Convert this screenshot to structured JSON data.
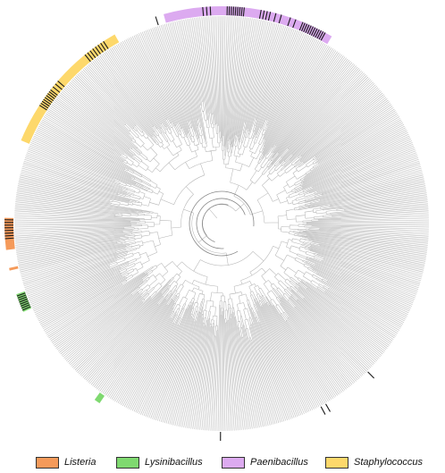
{
  "figure": {
    "type": "circular-phylogenetic-tree",
    "branch_color": "#b5b5b5",
    "marker_color": "#1a1a1a",
    "genus_bands": [
      {
        "genus": "Staphylococcus",
        "color": "#fdd86b",
        "start_deg": 292.5,
        "end_deg": 330.5
      },
      {
        "genus": "Paenibacillus",
        "color": "#dcaaf0",
        "start_deg": 344.5,
        "end_deg": 30.5
      },
      {
        "genus": "Listeria",
        "color": "#f59a5a",
        "start_deg": 263,
        "end_deg": 271.5
      },
      {
        "genus": "Listeria",
        "color": "#f59a5a",
        "start_deg": 257.5,
        "end_deg": 258.2
      },
      {
        "genus": "Lysinibacillus",
        "color": "#7fd970",
        "start_deg": 246,
        "end_deg": 251
      },
      {
        "genus": "Lysinibacillus",
        "color": "#7fd970",
        "start_deg": 214.2,
        "end_deg": 215.8
      }
    ],
    "marked_sectors": [
      {
        "start_deg": 303,
        "end_deg": 308,
        "count": 9
      },
      {
        "start_deg": 309,
        "end_deg": 311,
        "count": 3
      },
      {
        "start_deg": 321,
        "end_deg": 327,
        "count": 8
      },
      {
        "start_deg": 355,
        "end_deg": 357,
        "count": 3
      },
      {
        "start_deg": 1.5,
        "end_deg": 6,
        "count": 9
      },
      {
        "start_deg": 10.5,
        "end_deg": 13,
        "count": 4
      },
      {
        "start_deg": 14.5,
        "end_deg": 16,
        "count": 2
      },
      {
        "start_deg": 18.5,
        "end_deg": 20,
        "count": 2
      },
      {
        "start_deg": 22,
        "end_deg": 28.5,
        "count": 12
      },
      {
        "start_deg": 266,
        "end_deg": 271,
        "count": 8
      },
      {
        "start_deg": 246.5,
        "end_deg": 250.5,
        "count": 8
      },
      {
        "start_deg": 135,
        "end_deg": 135.8,
        "count": 1
      },
      {
        "start_deg": 150,
        "end_deg": 151.5,
        "count": 2
      },
      {
        "start_deg": 180,
        "end_deg": 180.6,
        "count": 1
      },
      {
        "start_deg": 342,
        "end_deg": 342.6,
        "count": 1
      }
    ]
  },
  "legend": [
    {
      "label": "Listeria",
      "color": "#f59a5a"
    },
    {
      "label": "Lysinibacillus",
      "color": "#7fd970"
    },
    {
      "label": "Paenibacillus",
      "color": "#dcaaf0"
    },
    {
      "label": "Staphylococcus",
      "color": "#fdd86b"
    }
  ]
}
